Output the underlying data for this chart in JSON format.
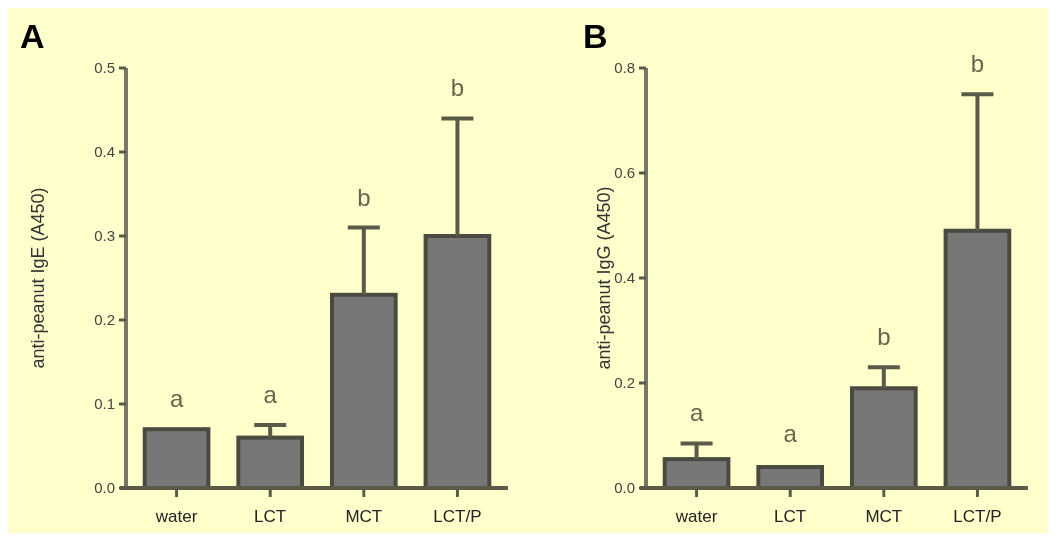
{
  "chart_data": [
    {
      "type": "bar",
      "title": "A",
      "ylabel": "anti-peanut IgE (A450)",
      "categories": [
        "water",
        "LCT",
        "MCT",
        "LCT/P"
      ],
      "values": [
        0.07,
        0.06,
        0.23,
        0.3
      ],
      "errors": [
        null,
        0.015,
        0.08,
        0.14
      ],
      "color": "#777777",
      "ylim": [
        0,
        0.5
      ],
      "yticks": [
        {
          "value": 0,
          "label": "0.0"
        },
        0.1,
        0.2,
        0.3,
        0.4,
        0.5
      ],
      "annotations": [
        {
          "text": "a",
          "x": "water",
          "y": 0.07
        },
        {
          "text": "a",
          "x": "LCT",
          "y": 0.075
        },
        {
          "text": "b",
          "x": "MCT",
          "y": 0.31
        },
        {
          "text": "b",
          "x": "LCT/P",
          "y": 0.44
        }
      ]
    },
    {
      "type": "bar",
      "title": "B",
      "ylabel": "anti-peanut IgG (A450)",
      "categories": [
        "water",
        "LCT",
        "MCT",
        "LCT/P"
      ],
      "values": [
        0.055,
        0.04,
        0.19,
        0.49
      ],
      "errors": [
        0.03,
        null,
        0.04,
        0.26
      ],
      "color": "#777777",
      "ylim": [
        0,
        0.8
      ],
      "yticks": [
        {
          "value": 0,
          "label": "0.0"
        },
        0.2,
        0.4,
        0.6,
        0.8
      ],
      "annotations": [
        {
          "text": "a",
          "x": "water",
          "y": 0.085
        },
        {
          "text": "a",
          "x": "LCT",
          "y": 0.045
        },
        {
          "text": "b",
          "x": "MCT",
          "y": 0.23
        },
        {
          "text": "b",
          "x": "LCT/P",
          "y": 0.75
        }
      ]
    }
  ]
}
